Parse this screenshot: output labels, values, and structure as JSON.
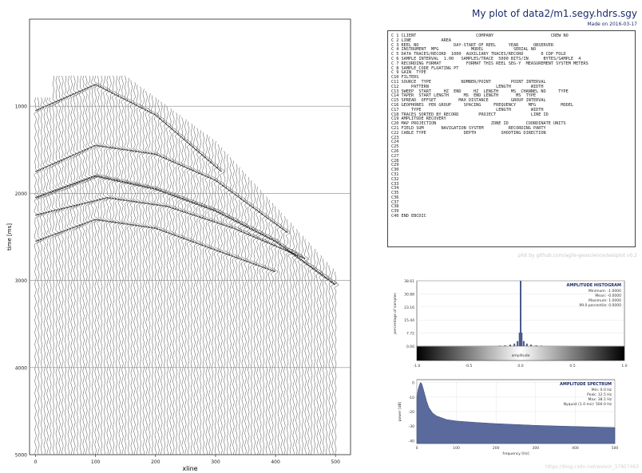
{
  "page": {
    "title": "My plot of data2/m1.segy.hdrs.sgy",
    "subtitle": "Made on 2016-03-17",
    "credit": "plot by github.com/agile-geoscience/seisplot v0.2",
    "watermark": "https://blog.csdn.net/weixin_37807463"
  },
  "ebcdic_header": [
    "C 1 CLIENT                        COMPANY                       CREW NO",
    "C 2 LINE            AREA",
    "C 3 REEL NO              DAY-START OF REEL     YEAR      OBSERVER",
    "C 4 INSTRUMENT  MFG             MODEL            SERIAL NO",
    "C 5 DATA TRACES/RECORD  1000  AUXILIARY TRACES/RECORD       0 CDP FOLD",
    "C 6 SAMPLE INTERVAL  1.00   SAMPLES/TRACE  5000 BITS/IN      BYTES/SAMPLE  4",
    "C 7 RECORDING FORMAT          FORMAT THIS REEL SEG-Y  MEASUREMENT SYSTEM METERS",
    "C 8 SAMPLE CODE FLOATING PT",
    "C 9 GAIN  TYPE",
    "C10 FILTERS",
    "C11 SOURCE  TYPE            NUMBER/POINT        POINT INTERVAL",
    "C12     PATTERN                           LENGTH        WIDTH",
    "C13 SWEEP  START     HZ  END     HZ  LENGTH     MS  CHANNEL NO     TYPE",
    "C14 TAPER  START LENGTH      MS  END LENGTH       MS  TYPE",
    "C15 SPREAD  OFFSET         MAX DISTANCE         GROUP INTERVAL",
    "C16 GEOPHONES  PER GROUP     SPACING     FREQUENCY     MFG          MODEL",
    "C17     TYPE                              LENGTH        WIDTH",
    "C18 TRACES SORTED BY RECORD        PROJECT              LINE ID",
    "C19 AMPLITUDE RECOVERY",
    "C20 MAP PROJECTION                      ZONE ID       COORDINATE UNITS",
    "C21 FIELD SUM       NAVIGATION SYSTEM          RECORDING PARTY",
    "C22 CABLE TYPE               DEPTH          SHOOTING DIRECTION",
    "C23",
    "C24",
    "C25",
    "C26",
    "C27",
    "C28",
    "C29",
    "C30",
    "C31",
    "C32",
    "C33",
    "C34",
    "C35",
    "C36",
    "C37",
    "C38",
    "C39",
    "C40 END EBCDIC"
  ],
  "chart_data": [
    {
      "type": "seismic-wiggle",
      "xlabel": "xline",
      "ylabel": "time [ms]",
      "xlim": [
        -10,
        525
      ],
      "ylim": [
        0,
        5000
      ],
      "y_inverted": true,
      "xticks": [
        0,
        100,
        200,
        300,
        400,
        500
      ],
      "yticks": [
        1000,
        2000,
        3000,
        4000,
        5000
      ],
      "grid": "horizontal",
      "traces": 500,
      "sample_interval_ms": 1.0,
      "events": [
        {
          "x": [
            0,
            100,
            200,
            310
          ],
          "t": [
            1050,
            750,
            1100,
            1750
          ]
        },
        {
          "x": [
            0,
            100,
            200,
            300,
            420
          ],
          "t": [
            1750,
            1450,
            1550,
            1850,
            2450
          ]
        },
        {
          "x": [
            0,
            100,
            200,
            300,
            400,
            500
          ],
          "t": [
            2050,
            1800,
            1950,
            2200,
            2550,
            3050
          ]
        },
        {
          "x": [
            0,
            120,
            220,
            330,
            450
          ],
          "t": [
            2250,
            2050,
            2150,
            2400,
            2750
          ]
        },
        {
          "x": [
            0,
            100,
            200,
            300,
            400
          ],
          "t": [
            2550,
            2300,
            2400,
            2650,
            2900
          ]
        }
      ]
    },
    {
      "type": "histogram",
      "title": "AMPLITUDE HISTOGRAM",
      "stats": [
        "Minimum: -1.0000",
        "Mean:  -0.0000",
        "Maximum: 1.0000",
        "99.0 percentile: 0.0000"
      ],
      "xlabel": "amplitude",
      "ylabel": "percentage of samples",
      "xticks": [
        "-1.0",
        "-0.5",
        "0.0",
        "0.5",
        "1.0"
      ],
      "yticks": [
        "0.00",
        "7.72",
        "15.44",
        "23.16",
        "30.88",
        "38.61"
      ],
      "xlim": [
        -1,
        1
      ],
      "ylim": [
        0,
        38.61
      ],
      "bin_centers": [
        -0.2,
        -0.15,
        -0.1,
        -0.06,
        -0.03,
        -0.01,
        0.0,
        0.01,
        0.03,
        0.06,
        0.1,
        0.15,
        0.2
      ],
      "values": [
        0.3,
        0.5,
        0.9,
        1.5,
        3.0,
        8.0,
        38.6,
        8.0,
        3.0,
        1.5,
        0.9,
        0.5,
        0.3
      ]
    },
    {
      "type": "area",
      "title": "AMPLITUDE SPECTRUM",
      "stats": [
        "Min: 0.0 Hz",
        "Peak: 12.5 Hz",
        "Max: 38.1 Hz",
        "Nyquist (1.0 ms): 500.0 Hz"
      ],
      "xlabel": "frequency [Hz]",
      "ylabel": "power [dB]",
      "xticks": [
        0,
        100,
        200,
        300,
        400,
        500
      ],
      "yticks": [
        0,
        -10,
        -20,
        -30,
        -40
      ],
      "xlim": [
        0,
        500
      ],
      "ylim": [
        -42,
        2
      ],
      "x": [
        0,
        3,
        6,
        9,
        12,
        15,
        20,
        25,
        30,
        40,
        50,
        75,
        100,
        150,
        200,
        300,
        400,
        500
      ],
      "y": [
        -10,
        -5,
        -2,
        0,
        -0.5,
        -3,
        -8,
        -13,
        -17,
        -21,
        -23,
        -25.5,
        -26.5,
        -27.5,
        -28.3,
        -29.5,
        -30.3,
        -31
      ]
    }
  ]
}
